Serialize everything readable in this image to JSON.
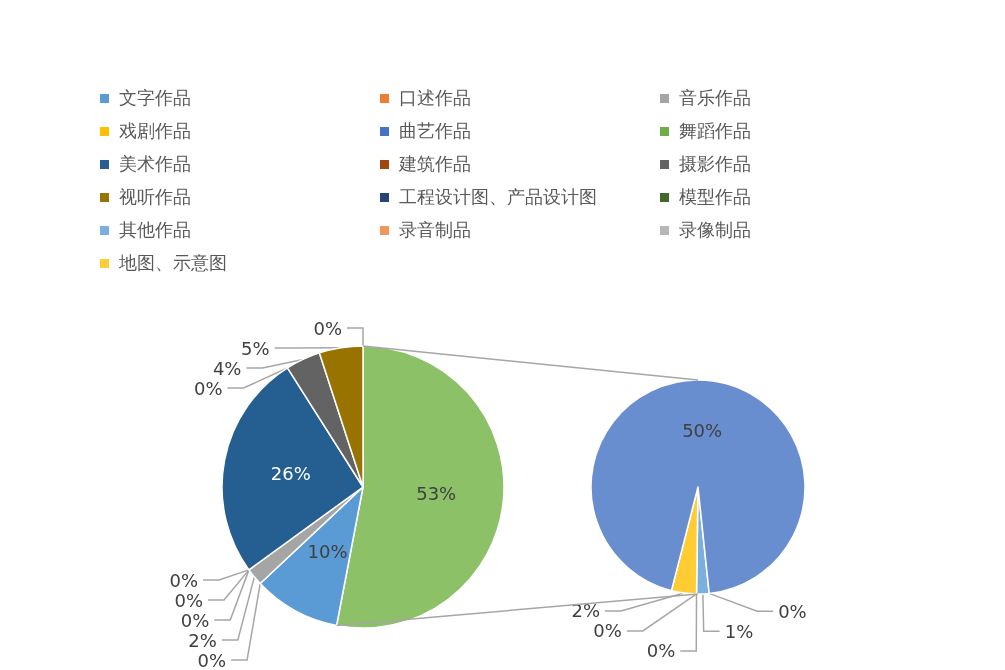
{
  "chart_data": [
    {
      "type": "pie",
      "categories": [
        null,
        "文字作品",
        "口述作品",
        "音乐作品",
        "戏剧作品",
        "曲艺作品",
        "舞蹈作品",
        "美术作品",
        "建筑作品",
        "摄影作品",
        "视听作品",
        "工程设计图、产品设计图"
      ],
      "values": [
        53,
        10,
        0,
        2,
        0,
        0,
        0,
        26,
        0,
        4,
        5,
        0
      ],
      "colors": [
        "#8cc168",
        "#5b9bd5",
        "#ed7d31",
        "#a5a5a5",
        "#ffc000",
        "#4472c4",
        "#70ad47",
        "#255e91",
        "#9e480e",
        "#636363",
        "#997300",
        "#264478"
      ],
      "value_labels": [
        "53%",
        "10%",
        "0%",
        "2%",
        "0%",
        "0%",
        "0%",
        "26%",
        "0%",
        "4%",
        "5%",
        "0%"
      ],
      "legend": "top"
    },
    {
      "type": "pie",
      "categories": [
        "模型作品",
        "其他作品",
        "录音制品",
        "录像制品",
        "地图、示意图",
        null
      ],
      "values": [
        0,
        1,
        0,
        0,
        2,
        50
      ],
      "colors": [
        "#43682b",
        "#7cafdd",
        "#f1975a",
        "#b7b7b7",
        "#ffcd33",
        "#698ed0"
      ],
      "value_labels": [
        "0%",
        "1%",
        "0%",
        "0%",
        "2%",
        "50%"
      ],
      "legend": "top"
    }
  ]
}
